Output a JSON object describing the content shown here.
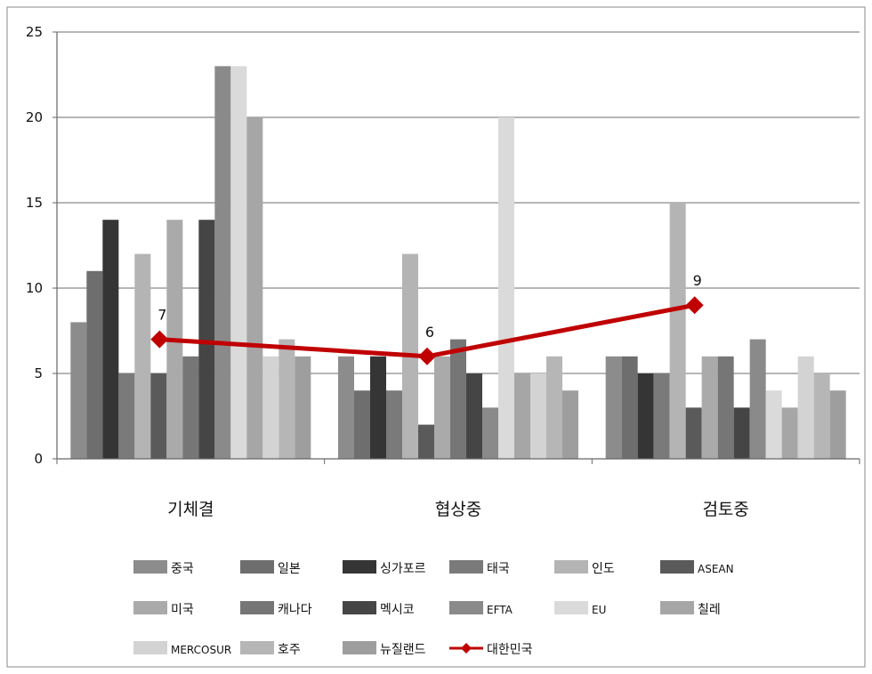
{
  "chart_data": {
    "type": "bar",
    "categories": [
      "기체결",
      "협상중",
      "검토중"
    ],
    "ylim": [
      0,
      25
    ],
    "yticks": [
      0,
      5,
      10,
      15,
      20,
      25
    ],
    "grid": true,
    "legend_position": "bottom",
    "series": [
      {
        "name": "중국",
        "values": [
          8,
          6,
          6
        ],
        "color": "#8c8c8c"
      },
      {
        "name": "일본",
        "values": [
          11,
          4,
          6
        ],
        "color": "#6e6e6e"
      },
      {
        "name": "싱가포르",
        "values": [
          14,
          6,
          5
        ],
        "color": "#353535"
      },
      {
        "name": "태국",
        "values": [
          5,
          4,
          5
        ],
        "color": "#7a7a7a"
      },
      {
        "name": "인도",
        "values": [
          12,
          12,
          15
        ],
        "color": "#b4b4b4"
      },
      {
        "name": "ASEAN",
        "values": [
          5,
          2,
          3
        ],
        "color": "#5a5a5a"
      },
      {
        "name": "미국",
        "values": [
          14,
          6,
          6
        ],
        "color": "#aaaaaa"
      },
      {
        "name": "캐나다",
        "values": [
          6,
          7,
          6
        ],
        "color": "#767676"
      },
      {
        "name": "멕시코",
        "values": [
          14,
          5,
          3
        ],
        "color": "#454545"
      },
      {
        "name": "EFTA",
        "values": [
          23,
          3,
          7
        ],
        "color": "#8a8a8a"
      },
      {
        "name": "EU",
        "values": [
          23,
          20,
          4
        ],
        "color": "#dadada"
      },
      {
        "name": "칠레",
        "values": [
          20,
          5,
          3
        ],
        "color": "#a6a6a6"
      },
      {
        "name": "MERCOSUR",
        "values": [
          6,
          5,
          6
        ],
        "color": "#d3d3d3"
      },
      {
        "name": "호주",
        "values": [
          7,
          6,
          5
        ],
        "color": "#b6b6b6"
      },
      {
        "name": "뉴질랜드",
        "values": [
          6,
          4,
          4
        ],
        "color": "#9e9e9e"
      }
    ],
    "line_series": {
      "name": "대한민국",
      "values": [
        7,
        6,
        9
      ],
      "labels": [
        "7",
        "6",
        "9"
      ],
      "color": "#c00000"
    }
  }
}
